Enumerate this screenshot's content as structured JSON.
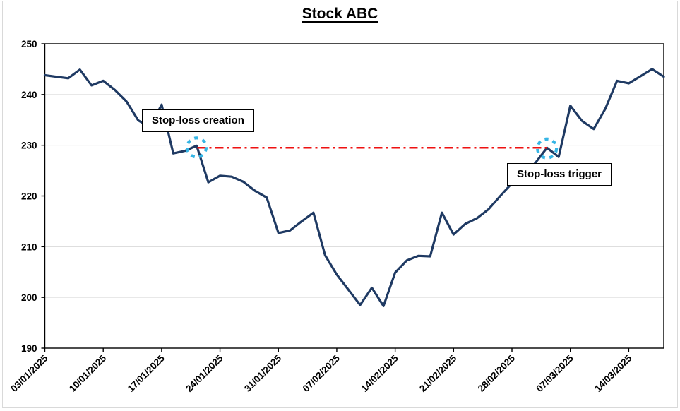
{
  "chart_data": {
    "type": "line",
    "title": "Stock ABC",
    "xlabel": "",
    "ylabel": "",
    "ylim": [
      190,
      250
    ],
    "grid": "horizontal",
    "legend": "none",
    "y_ticks": [
      190,
      200,
      210,
      220,
      230,
      240,
      250
    ],
    "y_gridlines": [
      200,
      210,
      220,
      230,
      240
    ],
    "x_label_every": 5,
    "x": [
      "03/01/2025",
      "06/01/2025",
      "07/01/2025",
      "08/01/2025",
      "09/01/2025",
      "10/01/2025",
      "13/01/2025",
      "14/01/2025",
      "15/01/2025",
      "16/01/2025",
      "17/01/2025",
      "20/01/2025",
      "21/01/2025",
      "22/01/2025",
      "23/01/2025",
      "24/01/2025",
      "27/01/2025",
      "28/01/2025",
      "29/01/2025",
      "30/01/2025",
      "31/01/2025",
      "03/02/2025",
      "04/02/2025",
      "05/02/2025",
      "06/02/2025",
      "07/02/2025",
      "10/02/2025",
      "11/02/2025",
      "12/02/2025",
      "13/02/2025",
      "14/02/2025",
      "17/02/2025",
      "18/02/2025",
      "19/02/2025",
      "20/02/2025",
      "21/02/2025",
      "24/02/2025",
      "25/02/2025",
      "26/02/2025",
      "27/02/2025",
      "28/02/2025",
      "03/03/2025",
      "04/03/2025",
      "05/03/2025",
      "06/03/2025",
      "07/03/2025",
      "10/03/2025",
      "11/03/2025",
      "12/03/2025",
      "13/03/2025",
      "14/03/2025",
      "17/03/2025",
      "18/03/2025",
      "19/03/2025"
    ],
    "series": [
      {
        "name": "Stock ABC",
        "values": [
          243.8,
          243.5,
          243.2,
          244.9,
          241.8,
          242.7,
          240.9,
          238.6,
          234.9,
          233.6,
          238.0,
          228.4,
          228.9,
          229.9,
          222.7,
          224.0,
          223.8,
          222.8,
          221.0,
          219.7,
          212.7,
          213.2,
          215.0,
          216.7,
          208.3,
          204.5,
          201.5,
          198.5,
          201.9,
          198.3,
          204.9,
          207.3,
          208.2,
          208.1,
          216.7,
          212.4,
          214.5,
          215.6,
          217.4,
          220.0,
          222.5,
          224.0,
          226.5,
          229.5,
          227.7,
          237.8,
          234.8,
          233.2,
          237.2,
          242.7,
          242.2,
          243.6,
          245.0,
          243.5
        ]
      }
    ],
    "annotations": {
      "stop_level": 229.5,
      "creation": {
        "label": "Stop-loss creation",
        "date": "22/01/2025",
        "value": 229.9,
        "index": 13
      },
      "trigger": {
        "label": "Stop-loss trigger",
        "date": "05/03/2025",
        "value": 229.5,
        "index": 43
      }
    },
    "colors": {
      "line": "#1f3a63",
      "stop_line": "#ee1111",
      "highlight_circle": "#35b5e5",
      "gridline": "#d9d9d9",
      "axis": "#000000",
      "text": "#000000"
    }
  }
}
